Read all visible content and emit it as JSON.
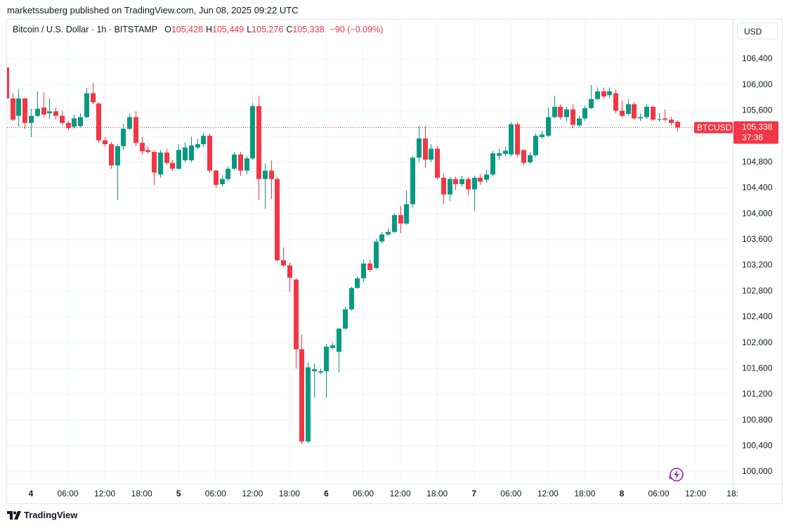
{
  "header": {
    "publisher": "marketssuberg published on TradingView.com, Jun 08, 2025 09:22 UTC"
  },
  "footer": {
    "brand": "TradingView"
  },
  "chart_data": {
    "type": "candlestick",
    "title": "Bitcoin / U.S. Dollar · 1h · BITSTAMP",
    "ohlc_legend": [
      {
        "key": "O",
        "value": "105,428"
      },
      {
        "key": "H",
        "value": "105,449"
      },
      {
        "key": "L",
        "value": "105,276"
      },
      {
        "key": "C",
        "value": "105,338"
      }
    ],
    "change": "−90 (−0.09%)",
    "currency": "USD",
    "symbol": "BTCUSD",
    "last_price": {
      "value": 105338,
      "label": "105,338"
    },
    "countdown": "37:36",
    "up_color": "#089981",
    "down_color": "#f23645",
    "grid": true,
    "xlim": [
      -3.88,
      114.04
    ],
    "ylim": [
      99815,
      107011
    ],
    "xticks": [
      {
        "value": 0,
        "label": "4"
      },
      {
        "value": 6,
        "label": "06:00"
      },
      {
        "value": 12,
        "label": "12:00"
      },
      {
        "value": 18,
        "label": "18:00"
      },
      {
        "value": 24,
        "label": "5"
      },
      {
        "value": 30,
        "label": "06:00"
      },
      {
        "value": 36,
        "label": "12:00"
      },
      {
        "value": 42,
        "label": "18:00"
      },
      {
        "value": 48,
        "label": "6"
      },
      {
        "value": 54,
        "label": "06:00"
      },
      {
        "value": 60,
        "label": "12:00"
      },
      {
        "value": 66,
        "label": "18:00"
      },
      {
        "value": 72,
        "label": "7"
      },
      {
        "value": 78,
        "label": "06:00"
      },
      {
        "value": 84,
        "label": "12:00"
      },
      {
        "value": 90,
        "label": "18:00"
      },
      {
        "value": 96,
        "label": "8"
      },
      {
        "value": 102,
        "label": "06:00"
      },
      {
        "value": 108,
        "label": "12:00"
      },
      {
        "value": 114,
        "label": "18:"
      }
    ],
    "yticks": [
      {
        "value": 100000,
        "label": "100,000"
      },
      {
        "value": 100400,
        "label": "100,400"
      },
      {
        "value": 100800,
        "label": "100,800"
      },
      {
        "value": 101200,
        "label": "101,200"
      },
      {
        "value": 101600,
        "label": "101,600"
      },
      {
        "value": 102000,
        "label": "102,000"
      },
      {
        "value": 102400,
        "label": "102,400"
      },
      {
        "value": 102800,
        "label": "102,800"
      },
      {
        "value": 103200,
        "label": "103,200"
      },
      {
        "value": 103600,
        "label": "103,600"
      },
      {
        "value": 104000,
        "label": "104,000"
      },
      {
        "value": 104400,
        "label": "104,400"
      },
      {
        "value": 104800,
        "label": "104,800"
      },
      {
        "value": 105200,
        "label": "105,200"
      },
      {
        "value": 105600,
        "label": "105,600"
      },
      {
        "value": 106000,
        "label": "106,000"
      },
      {
        "value": 106400,
        "label": "106,400"
      }
    ],
    "x": [
      -4,
      -3,
      -2,
      -1,
      0,
      1,
      2,
      3,
      4,
      5,
      6,
      7,
      8,
      9,
      10,
      11,
      12,
      13,
      14,
      15,
      16,
      17,
      18,
      19,
      20,
      21,
      22,
      23,
      24,
      25,
      26,
      27,
      28,
      29,
      30,
      31,
      32,
      33,
      34,
      35,
      36,
      37,
      38,
      39,
      40,
      41,
      42,
      43,
      44,
      45,
      46,
      47,
      48,
      49,
      50,
      51,
      52,
      53,
      54,
      55,
      56,
      57,
      58,
      59,
      60,
      61,
      62,
      63,
      64,
      65,
      66,
      67,
      68,
      69,
      70,
      71,
      72,
      73,
      74,
      75,
      76,
      77,
      78,
      79,
      80,
      81,
      82,
      83,
      84,
      85,
      86,
      87,
      88,
      89,
      90,
      91,
      92,
      93,
      94,
      95,
      96,
      97,
      98,
      99,
      100,
      101,
      102,
      103,
      104,
      105
    ],
    "open": [
      106270,
      105790,
      105520,
      105790,
      105410,
      105520,
      105650,
      105560,
      105590,
      105520,
      105410,
      105350,
      105360,
      105500,
      105870,
      105710,
      105140,
      105080,
      104750,
      105050,
      105320,
      105500,
      105100,
      104990,
      104960,
      104610,
      104950,
      104790,
      104700,
      104830,
      104830,
      105030,
      105080,
      105210,
      104670,
      104460,
      104540,
      104700,
      104920,
      104670,
      104860,
      105670,
      104540,
      104670,
      104540,
      103280,
      103200,
      102980,
      101900,
      100470,
      101560,
      101540,
      101560,
      101920,
      101860,
      102220,
      102520,
      102850,
      103000,
      103230,
      103160,
      103570,
      103680,
      103720,
      103980,
      103850,
      104150,
      104870,
      105170,
      104840,
      105010,
      104560,
      104300,
      104540,
      104460,
      104540,
      104380,
      104560,
      104530,
      104610,
      104900,
      104930,
      104920,
      105390,
      104990,
      104800,
      104910,
      105190,
      105210,
      105500,
      105660,
      105500,
      105620,
      105370,
      105480,
      105640,
      105780,
      105900,
      105840,
      105870,
      105600,
      105550,
      105700,
      105480,
      105500,
      105660,
      105460,
      105480,
      105460,
      105428
    ],
    "high": [
      106270,
      105870,
      105930,
      105800,
      105630,
      105900,
      105880,
      105790,
      105650,
      105600,
      105440,
      105540,
      105560,
      105950,
      106030,
      105730,
      105190,
      105120,
      105080,
      105390,
      105560,
      105590,
      105190,
      105050,
      104990,
      104990,
      105010,
      104840,
      105080,
      105110,
      105200,
      105160,
      105260,
      105240,
      104680,
      104600,
      104730,
      104960,
      104960,
      104900,
      105720,
      105830,
      104780,
      104830,
      104570,
      103480,
      103240,
      103000,
      102130,
      101700,
      101680,
      101600,
      101980,
      102000,
      102230,
      102560,
      102870,
      103030,
      103290,
      103290,
      103620,
      103720,
      103780,
      104000,
      104120,
      104360,
      104900,
      105360,
      105360,
      105080,
      105050,
      104620,
      104570,
      104580,
      104590,
      104570,
      104590,
      104620,
      104690,
      104980,
      105010,
      105040,
      105420,
      105420,
      105000,
      104960,
      105250,
      105290,
      105650,
      105830,
      105700,
      105660,
      105700,
      105520,
      105680,
      106000,
      105960,
      105960,
      105960,
      105930,
      105760,
      105780,
      105740,
      105560,
      105700,
      105680,
      105560,
      105620,
      105500,
      105449
    ],
    "low": [
      105790,
      105440,
      105350,
      105320,
      105190,
      105500,
      105500,
      105470,
      105460,
      105380,
      105300,
      105320,
      105340,
      105480,
      105700,
      105100,
      105040,
      104700,
      104210,
      104990,
      105300,
      105050,
      104920,
      104930,
      104450,
      104560,
      104760,
      104660,
      104680,
      104800,
      104800,
      105000,
      105040,
      104640,
      104400,
      104430,
      104500,
      104680,
      104590,
      104610,
      104830,
      104220,
      104080,
      104230,
      103260,
      103180,
      102780,
      101600,
      100430,
      100440,
      101150,
      101520,
      101150,
      101900,
      101540,
      102200,
      102500,
      102840,
      102950,
      103100,
      103140,
      103540,
      103660,
      103700,
      103700,
      103830,
      104100,
      104800,
      104720,
      104800,
      104530,
      104150,
      104200,
      104370,
      104420,
      104290,
      104050,
      104450,
      104480,
      104580,
      104830,
      104900,
      104890,
      104880,
      104750,
      104770,
      104880,
      105170,
      105190,
      105480,
      105460,
      105440,
      105330,
      105340,
      105440,
      105620,
      105760,
      105780,
      105800,
      105560,
      105490,
      105520,
      105460,
      105440,
      105470,
      105440,
      105430,
      105430,
      105370,
      105276
    ],
    "close": [
      105790,
      105460,
      105790,
      105410,
      105520,
      105630,
      105540,
      105590,
      105520,
      105410,
      105330,
      105480,
      105500,
      105870,
      105730,
      105140,
      105080,
      104750,
      105050,
      105320,
      105500,
      105100,
      104970,
      104960,
      104640,
      104950,
      104790,
      104700,
      104990,
      105030,
      105060,
      105080,
      105210,
      104670,
      104450,
      104540,
      104700,
      104920,
      104670,
      104860,
      105670,
      104540,
      104670,
      104540,
      103280,
      103200,
      103010,
      101900,
      100470,
      101620,
      101590,
      101560,
      101940,
      101960,
      102220,
      102520,
      102850,
      103000,
      103230,
      103130,
      103570,
      103680,
      103720,
      103980,
      103850,
      104150,
      104870,
      105170,
      104840,
      105010,
      104560,
      104300,
      104540,
      104460,
      104540,
      104380,
      104560,
      104500,
      104610,
      104940,
      104940,
      104980,
      105390,
      104920,
      104790,
      104910,
      105210,
      105230,
      105500,
      105660,
      105500,
      105620,
      105380,
      105480,
      105640,
      105780,
      105900,
      105820,
      105900,
      105600,
      105520,
      105700,
      105480,
      105500,
      105660,
      105460,
      105470,
      105460,
      105410,
      105338
    ]
  }
}
